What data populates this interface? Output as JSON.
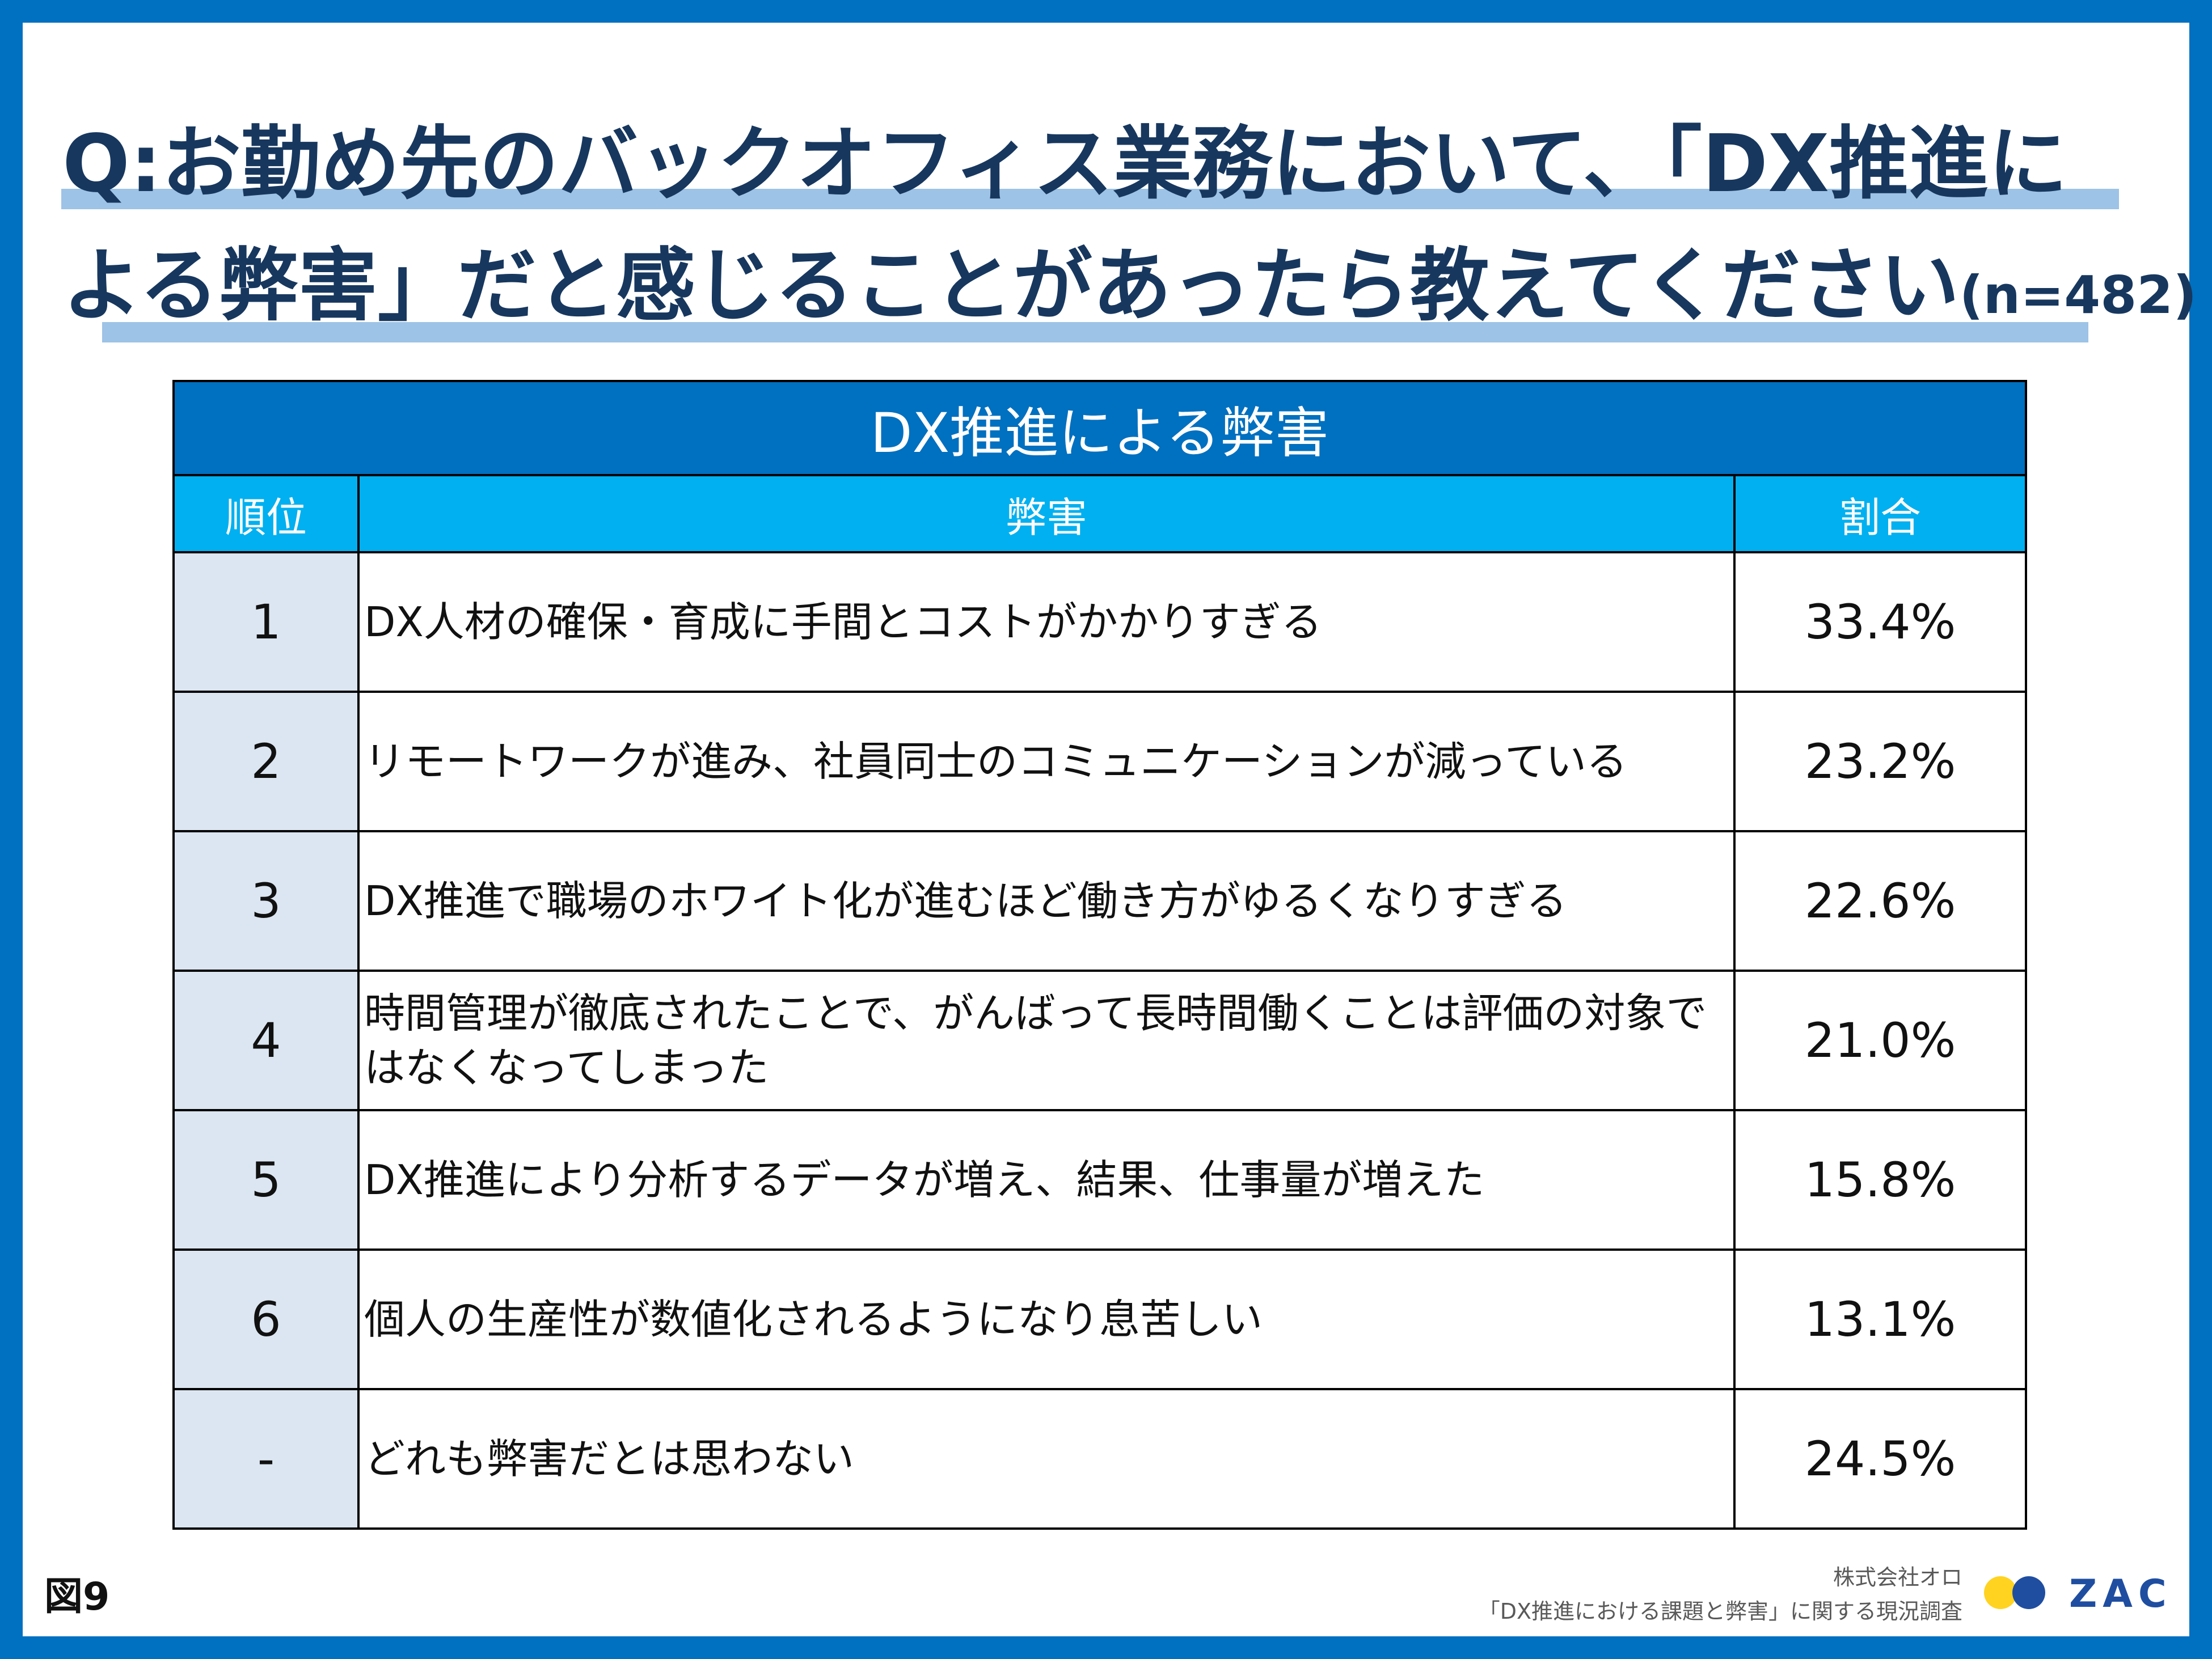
{
  "title": {
    "line1": "Q:お勤め先のバックオフィス業務において、「DX推進に",
    "line2": "よる弊害」だと感じることがあったら教えてください",
    "sample": "(n=482)"
  },
  "table": {
    "title": "DX推進による弊害",
    "headers": {
      "rank": "順位",
      "harm": "弊害",
      "ratio": "割合"
    },
    "rows": [
      {
        "rank": "1",
        "harm": "DX人材の確保・育成に手間とコストがかかりすぎる",
        "ratio": "33.4%"
      },
      {
        "rank": "2",
        "harm": "リモートワークが進み、社員同士のコミュニケーションが減っている",
        "ratio": "23.2%"
      },
      {
        "rank": "3",
        "harm": "DX推進で職場のホワイト化が進むほど働き方がゆるくなりすぎる",
        "ratio": "22.6%"
      },
      {
        "rank": "4",
        "harm": "時間管理が徹底されたことで、がんばって長時間働くことは評価の対象ではなくなってしまった",
        "ratio": "21.0%"
      },
      {
        "rank": "5",
        "harm": "DX推進により分析するデータが増え、結果、仕事量が増えた",
        "ratio": "15.8%"
      },
      {
        "rank": "6",
        "harm": "個人の生産性が数値化されるようになり息苦しい",
        "ratio": "13.1%"
      },
      {
        "rank": "-",
        "harm": "どれも弊害だとは思わない",
        "ratio": "24.5%"
      }
    ]
  },
  "footer": {
    "figure_label": "図9",
    "company": "株式会社オロ",
    "survey": "「DX推進における課題と弊害」に関する現況調査",
    "logo_text": "ZAC"
  },
  "colors": {
    "frame": "#0070c0",
    "title_text": "#17375e",
    "title_underline": "#9dc3e6",
    "table_title_bg": "#0070c0",
    "column_header_bg": "#00b0f0",
    "rank_cell_bg": "#dce6f2",
    "logo_yellow": "#ffd320",
    "logo_blue": "#1f4ea1"
  }
}
